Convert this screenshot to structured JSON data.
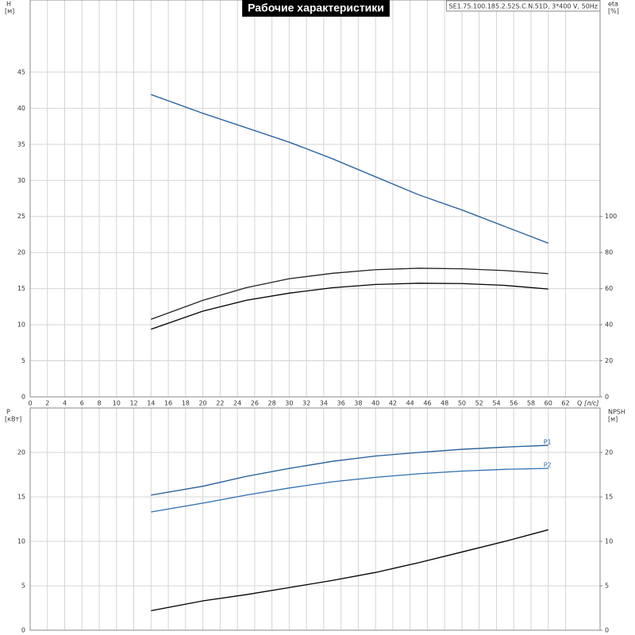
{
  "chart_data": [
    {
      "type": "line",
      "title": "Рабочие характеристики",
      "subtitle": "SE1.75.100.185.2.52S.C.N.51D, 3*400 V, 50Hz",
      "xlabel": "Q",
      "xunit": "[л/с]",
      "ylabel": "H",
      "yunit": "[м]",
      "y2label": "eta",
      "y2unit": "[%]",
      "x": [
        14,
        20,
        25,
        30,
        35,
        40,
        45,
        50,
        55,
        60
      ],
      "xlim": [
        0,
        66
      ],
      "xticks": [
        0,
        2,
        4,
        6,
        8,
        10,
        12,
        14,
        16,
        18,
        20,
        22,
        24,
        26,
        28,
        30,
        32,
        34,
        36,
        38,
        40,
        42,
        44,
        46,
        48,
        50,
        52,
        54,
        56,
        58,
        60,
        62
      ],
      "xtick_labels": true,
      "ylim": [
        0,
        55
      ],
      "yticks": [
        0,
        5,
        10,
        15,
        20,
        25,
        30,
        35,
        40,
        45
      ],
      "y2lim": [
        0,
        220
      ],
      "y2ticks": [
        0,
        20,
        40,
        60,
        80,
        100
      ],
      "grid": true,
      "series": [
        {
          "color": "#1f5b99",
          "values": [
            41.9,
            39.3,
            37.3,
            35.3,
            33.0,
            30.5,
            28.0,
            25.9,
            23.6,
            21.3
          ]
        },
        {
          "color": "#222222",
          "axis": "y2",
          "values": [
            43,
            53.5,
            60.5,
            65.5,
            68.5,
            70.5,
            71.3,
            71,
            70,
            68.3
          ]
        },
        {
          "color": "#000000",
          "axis": "y2",
          "values": [
            37.5,
            47.5,
            53.5,
            57.5,
            60.5,
            62.3,
            63,
            62.8,
            61.8,
            59.8
          ]
        }
      ]
    },
    {
      "type": "line",
      "ylabel": "P",
      "yunit": "[кВт]",
      "y2label": "NPSH",
      "y2unit": "[м]",
      "x": [
        14,
        20,
        25,
        30,
        35,
        40,
        45,
        50,
        55,
        60
      ],
      "xlim": [
        0,
        66
      ],
      "xticks": [
        0,
        2,
        4,
        6,
        8,
        10,
        12,
        14,
        16,
        18,
        20,
        22,
        24,
        26,
        28,
        30,
        32,
        34,
        36,
        38,
        40,
        42,
        44,
        46,
        48,
        50,
        52,
        54,
        56,
        58,
        60,
        62
      ],
      "xtick_labels": false,
      "ylim": [
        0,
        25
      ],
      "yticks": [
        0,
        5,
        10,
        15,
        20
      ],
      "y2lim": [
        0,
        25
      ],
      "y2ticks": [
        0,
        5,
        10,
        15,
        20
      ],
      "grid": true,
      "series": [
        {
          "name": "P1",
          "color": "#1f5b99",
          "values": [
            15.2,
            16.2,
            17.3,
            18.2,
            19.0,
            19.6,
            20.0,
            20.35,
            20.6,
            20.8
          ]
        },
        {
          "name": "P2",
          "color": "#2e6fb0",
          "values": [
            13.3,
            14.3,
            15.2,
            16.0,
            16.7,
            17.2,
            17.6,
            17.9,
            18.1,
            18.2
          ]
        },
        {
          "color": "#000000",
          "axis": "y2",
          "values": [
            2.2,
            3.3,
            4.0,
            4.8,
            5.6,
            6.5,
            7.6,
            8.8,
            10.0,
            11.3
          ]
        }
      ]
    }
  ]
}
